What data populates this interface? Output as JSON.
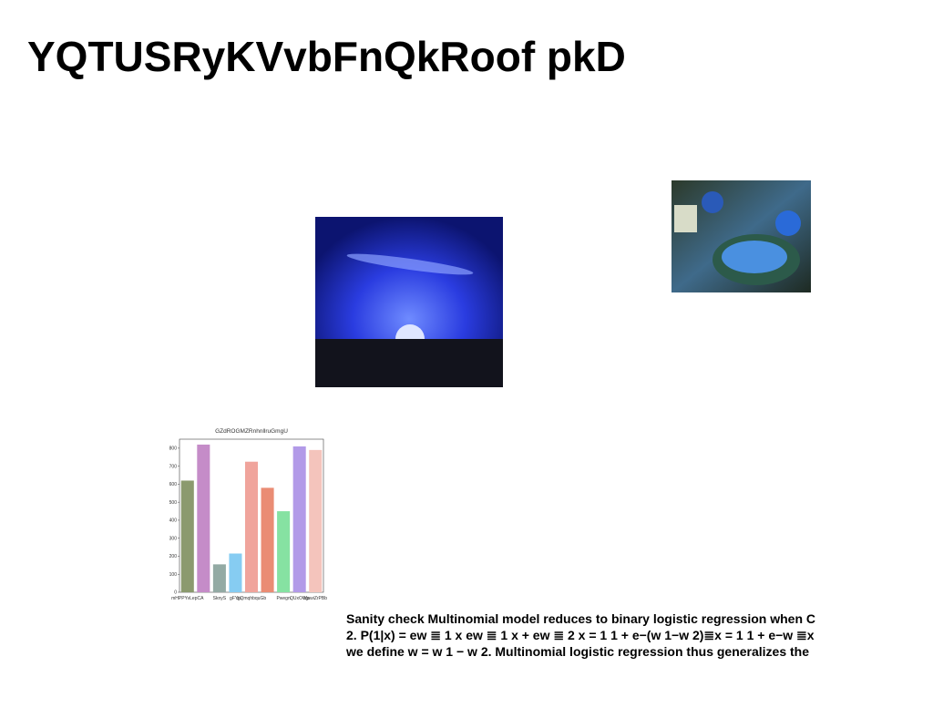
{
  "title": "YQTUSRyKVvbFnQkRoof pkD",
  "chart_data": {
    "type": "bar",
    "title": "GZdROGMZRnhnllruGmgU",
    "categories": [
      "mHPPYvLepCA",
      null,
      "SknyS",
      "gFYjs",
      "zjQmqhbquGb",
      null,
      "Pwegn",
      "QUxOWp",
      "bjawiZrPBb"
    ],
    "values": [
      620,
      820,
      155,
      215,
      725,
      580,
      450,
      810,
      790
    ],
    "colors": [
      "#8b9a6e",
      "#c58cc8",
      "#93aaa4",
      "#86ccf2",
      "#f0a49c",
      "#ea8c74",
      "#86e2a2",
      "#b29ae8",
      "#f4c4bc"
    ],
    "ylim": [
      0,
      850
    ],
    "yticks": [
      0,
      100,
      200,
      300,
      400,
      500,
      600,
      700,
      800
    ]
  },
  "text": {
    "lines": [
      "Sanity check Multinomial model reduces to binary logistic regression when C",
      "2. P(1|x) = ew ≣ 1 x ew ≣ 1 x + ew ≣ 2 x = 1 1 + e−(w 1−w 2)≣x = 1 1 + e−w ≣x",
      "we define w = w 1 − w 2. Multinomial logistic regression thus generalizes the"
    ]
  }
}
